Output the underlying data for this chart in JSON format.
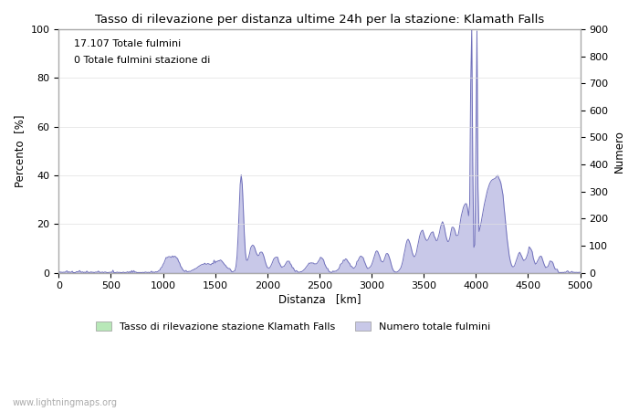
{
  "title": "Tasso di rilevazione per distanza ultime 24h per la stazione: Klamath Falls",
  "xlabel": "Distanza   [km]",
  "ylabel_left": "Percento  [%]",
  "ylabel_right": "Numero",
  "annotation_line1": "17.107 Totale fulmini",
  "annotation_line2": "0 Totale fulmini stazione di",
  "xlim": [
    0,
    5000
  ],
  "ylim_left": [
    0,
    100
  ],
  "ylim_right": [
    0,
    900
  ],
  "xticks": [
    0,
    500,
    1000,
    1500,
    2000,
    2500,
    3000,
    3500,
    4000,
    4500,
    5000
  ],
  "yticks_left": [
    0,
    20,
    40,
    60,
    80,
    100
  ],
  "yticks_right": [
    0,
    100,
    200,
    300,
    400,
    500,
    600,
    700,
    800,
    900
  ],
  "legend_entries": [
    "Tasso di rilevazione stazione Klamath Falls",
    "Numero totale fulmini"
  ],
  "legend_colors": [
    "#b8e8b8",
    "#c8c8e8"
  ],
  "watermark": "www.lightningmaps.org",
  "background_color": "#ffffff",
  "line_color_blue": "#7070bb",
  "line_color_green": "#70bb70",
  "fill_color_blue": "#c8c8e8",
  "fill_color_green": "#b8e8b8"
}
